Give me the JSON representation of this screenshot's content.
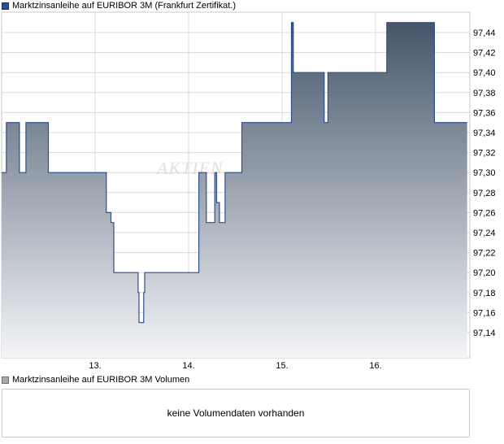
{
  "price_legend": "Marktzinsanleihe auf EURIBOR 3M (Frankfurt Zertifikat.)",
  "volume_legend": "Marktzinsanleihe auf EURIBOR 3M Volumen",
  "volume_message": "keine Volumendaten vorhanden",
  "watermark": "AKTIEN",
  "colors": {
    "line": "#2e4f88",
    "fill_top": "#45566a",
    "fill_bottom": "#f4f5f8",
    "grid": "#d8d8d8"
  },
  "chart_data": {
    "type": "area",
    "ylim": [
      97.12,
      97.46
    ],
    "y_ticks": [
      "97,14",
      "97,16",
      "97,18",
      "97,20",
      "97,22",
      "97,24",
      "97,26",
      "97,28",
      "97,30",
      "97,32",
      "97,34",
      "97,36",
      "97,38",
      "97,40",
      "97,42",
      "97,44"
    ],
    "x_ticks": [
      {
        "label": "13.",
        "x": 1.0
      },
      {
        "label": "14.",
        "x": 2.0
      },
      {
        "label": "15.",
        "x": 3.0
      },
      {
        "label": "16.",
        "x": 4.0
      }
    ],
    "xlim": [
      0.0,
      4.98
    ],
    "step_points": [
      [
        0.0,
        97.3
      ],
      [
        0.05,
        97.3
      ],
      [
        0.05,
        97.35
      ],
      [
        0.19,
        97.35
      ],
      [
        0.19,
        97.3
      ],
      [
        0.26,
        97.3
      ],
      [
        0.26,
        97.35
      ],
      [
        0.5,
        97.35
      ],
      [
        0.5,
        97.3
      ],
      [
        1.12,
        97.3
      ],
      [
        1.12,
        97.26
      ],
      [
        1.17,
        97.26
      ],
      [
        1.17,
        97.25
      ],
      [
        1.2,
        97.25
      ],
      [
        1.2,
        97.2
      ],
      [
        1.46,
        97.2
      ],
      [
        1.46,
        97.18
      ],
      [
        1.47,
        97.18
      ],
      [
        1.47,
        97.15
      ],
      [
        1.52,
        97.15
      ],
      [
        1.52,
        97.18
      ],
      [
        1.53,
        97.18
      ],
      [
        1.53,
        97.2
      ],
      [
        2.11,
        97.2
      ],
      [
        2.11,
        97.3
      ],
      [
        2.19,
        97.3
      ],
      [
        2.19,
        97.25
      ],
      [
        2.28,
        97.25
      ],
      [
        2.28,
        97.3
      ],
      [
        2.3,
        97.3
      ],
      [
        2.3,
        97.27
      ],
      [
        2.33,
        97.27
      ],
      [
        2.33,
        97.25
      ],
      [
        2.39,
        97.25
      ],
      [
        2.39,
        97.3
      ],
      [
        2.57,
        97.3
      ],
      [
        2.57,
        97.35
      ],
      [
        3.1,
        97.35
      ],
      [
        3.1,
        97.45
      ],
      [
        3.12,
        97.45
      ],
      [
        3.12,
        97.4
      ],
      [
        3.45,
        97.4
      ],
      [
        3.45,
        97.35
      ],
      [
        3.49,
        97.35
      ],
      [
        3.49,
        97.4
      ],
      [
        4.12,
        97.4
      ],
      [
        4.12,
        97.45
      ],
      [
        4.63,
        97.45
      ],
      [
        4.63,
        97.35
      ],
      [
        4.98,
        97.35
      ]
    ]
  }
}
